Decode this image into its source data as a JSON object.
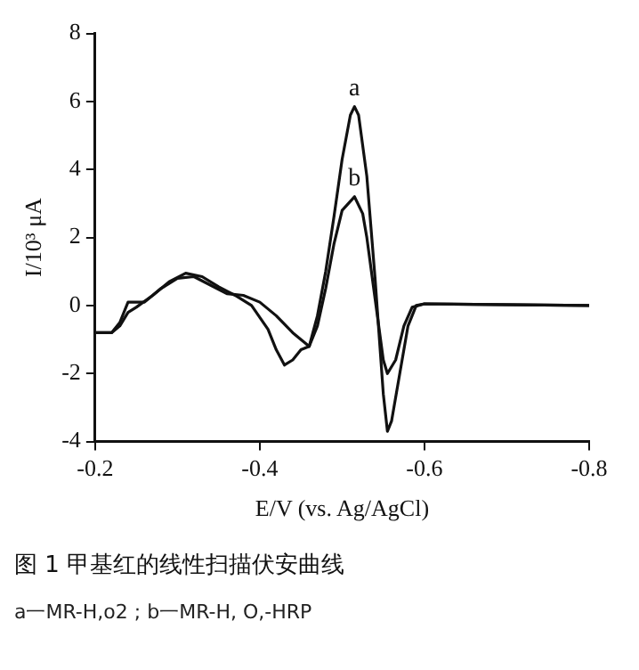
{
  "chart_data": {
    "type": "line",
    "title": "图 1 甲基红的线性扫描伏安曲线",
    "annotations": [
      "a一MR-H,o2 ; b一MR-H, O,-HRP"
    ],
    "xlabel": "E/V (vs. Ag/AgCl)",
    "ylabel": "I/10³ μA",
    "xlim": [
      -0.2,
      -0.8
    ],
    "xticks": [
      -0.2,
      -0.4,
      -0.6,
      -0.8
    ],
    "ylim": [
      -4,
      8
    ],
    "yticks": [
      -4,
      -2,
      0,
      2,
      4,
      6,
      8
    ],
    "grid": false,
    "legend": false,
    "marker": "none",
    "line_style": "solid",
    "series": [
      {
        "name": "a",
        "color": "#111111",
        "x": [
          -0.2,
          -0.22,
          -0.23,
          -0.24,
          -0.25,
          -0.27,
          -0.29,
          -0.31,
          -0.33,
          -0.35,
          -0.37,
          -0.39,
          -0.41,
          -0.42,
          -0.43,
          -0.44,
          -0.45,
          -0.46,
          -0.47,
          -0.48,
          -0.49,
          -0.5,
          -0.51,
          -0.515,
          -0.52,
          -0.53,
          -0.54,
          -0.55,
          -0.555,
          -0.56,
          -0.57,
          -0.58,
          -0.59,
          -0.6,
          -0.8
        ],
        "values": [
          -0.8,
          -0.8,
          -0.6,
          -0.2,
          -0.05,
          0.3,
          0.7,
          0.95,
          0.85,
          0.55,
          0.3,
          0,
          -0.7,
          -1.3,
          -1.75,
          -1.6,
          -1.3,
          -1.2,
          -0.3,
          1,
          2.6,
          4.3,
          5.6,
          5.85,
          5.6,
          3.8,
          0.8,
          -2.6,
          -3.7,
          -3.4,
          -2,
          -0.6,
          0,
          0.05,
          0
        ]
      },
      {
        "name": "b",
        "color": "#111111",
        "x": [
          -0.2,
          -0.22,
          -0.23,
          -0.24,
          -0.26,
          -0.28,
          -0.3,
          -0.32,
          -0.34,
          -0.36,
          -0.38,
          -0.4,
          -0.42,
          -0.44,
          -0.46,
          -0.47,
          -0.48,
          -0.49,
          -0.5,
          -0.515,
          -0.525,
          -0.53,
          -0.54,
          -0.55,
          -0.555,
          -0.565,
          -0.575,
          -0.585,
          -0.6,
          -0.8
        ],
        "values": [
          -0.8,
          -0.8,
          -0.5,
          0.1,
          0.1,
          0.5,
          0.8,
          0.85,
          0.6,
          0.35,
          0.3,
          0.1,
          -0.3,
          -0.8,
          -1.2,
          -0.6,
          0.5,
          1.8,
          2.8,
          3.2,
          2.7,
          2,
          0.2,
          -1.6,
          -2,
          -1.6,
          -0.6,
          -0.05,
          0.05,
          0
        ]
      }
    ]
  }
}
